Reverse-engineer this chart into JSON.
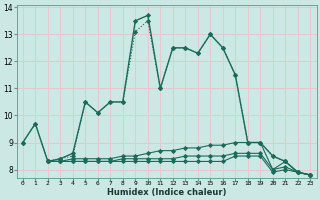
{
  "xlabel": "Humidex (Indice chaleur)",
  "background_color": "#cce8e4",
  "grid_color": "#e8c8ca",
  "line_color": "#1a6b5a",
  "x_ticks": [
    0,
    1,
    2,
    3,
    4,
    5,
    6,
    7,
    8,
    9,
    10,
    11,
    12,
    13,
    14,
    15,
    16,
    17,
    18,
    19,
    20,
    21,
    22,
    23
  ],
  "ylim": [
    7.7,
    14.1
  ],
  "xlim": [
    -0.5,
    23.5
  ],
  "series": [
    {
      "x": [
        0,
        1,
        2,
        3,
        4,
        5,
        6,
        7,
        8,
        9,
        10,
        11,
        12,
        13,
        14,
        15,
        16,
        17,
        18,
        19,
        20,
        21,
        22,
        23
      ],
      "y": [
        9.0,
        9.7,
        8.3,
        8.4,
        8.5,
        10.5,
        10.1,
        10.5,
        10.5,
        13.1,
        13.5,
        11.0,
        12.5,
        12.5,
        12.3,
        13.0,
        12.5,
        11.5,
        9.0,
        9.0,
        8.5,
        8.3,
        7.9,
        7.8
      ],
      "style": "dotted",
      "marker": "D",
      "lw": 0.8,
      "ms": 2.0
    },
    {
      "x": [
        0,
        1,
        2,
        3,
        4,
        5,
        6,
        7,
        8,
        9,
        10,
        11,
        12,
        13,
        14,
        15,
        16,
        17,
        18,
        19,
        20,
        21,
        22,
        23
      ],
      "y": [
        9.0,
        9.7,
        8.3,
        8.4,
        8.6,
        10.5,
        10.1,
        10.5,
        10.5,
        13.5,
        13.7,
        11.0,
        12.5,
        12.5,
        12.3,
        13.0,
        12.5,
        11.5,
        9.0,
        9.0,
        8.5,
        8.3,
        7.9,
        7.8
      ],
      "style": "solid",
      "marker": "D",
      "lw": 1.0,
      "ms": 2.0
    },
    {
      "x": [
        2,
        3,
        4,
        5,
        6,
        7,
        8,
        9,
        10,
        11,
        12,
        13,
        14,
        15,
        16,
        17,
        18,
        19,
        20,
        21,
        22,
        23
      ],
      "y": [
        8.3,
        8.3,
        8.4,
        8.4,
        8.4,
        8.4,
        8.5,
        8.5,
        8.6,
        8.7,
        8.7,
        8.8,
        8.8,
        8.9,
        8.9,
        9.0,
        9.0,
        9.0,
        8.0,
        8.3,
        7.9,
        7.8
      ],
      "style": "solid",
      "marker": "D",
      "lw": 0.8,
      "ms": 2.0
    },
    {
      "x": [
        2,
        3,
        4,
        5,
        6,
        7,
        8,
        9,
        10,
        11,
        12,
        13,
        14,
        15,
        16,
        17,
        18,
        19,
        20,
        21,
        22,
        23
      ],
      "y": [
        8.3,
        8.3,
        8.3,
        8.3,
        8.3,
        8.3,
        8.4,
        8.4,
        8.4,
        8.4,
        8.4,
        8.5,
        8.5,
        8.5,
        8.5,
        8.6,
        8.6,
        8.6,
        8.0,
        8.1,
        7.9,
        7.8
      ],
      "style": "solid",
      "marker": "D",
      "lw": 0.8,
      "ms": 2.0
    },
    {
      "x": [
        2,
        3,
        4,
        5,
        6,
        7,
        8,
        9,
        10,
        11,
        12,
        13,
        14,
        15,
        16,
        17,
        18,
        19,
        20,
        21,
        22,
        23
      ],
      "y": [
        8.3,
        8.3,
        8.3,
        8.3,
        8.3,
        8.3,
        8.3,
        8.3,
        8.3,
        8.3,
        8.3,
        8.3,
        8.3,
        8.3,
        8.3,
        8.5,
        8.5,
        8.5,
        7.9,
        8.0,
        7.9,
        7.8
      ],
      "style": "solid",
      "marker": "D",
      "lw": 0.8,
      "ms": 2.0
    }
  ]
}
